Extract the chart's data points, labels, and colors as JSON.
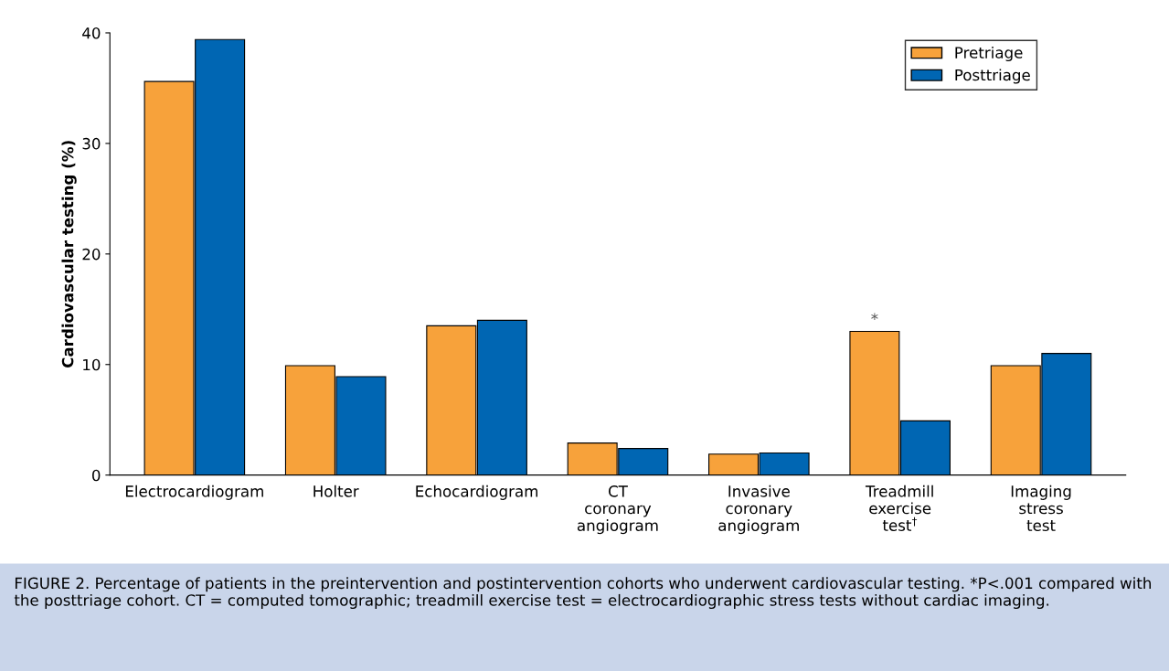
{
  "chart_data": {
    "type": "bar",
    "ylabel": "Cardiovascular testing (%)",
    "categories": [
      "Electrocardiogram",
      "Holter",
      "Echocardiogram",
      "CT\ncoronary\nangiogram",
      "Invasive\ncoronary\nangiogram",
      "Treadmill\nexercise\ntest$^{†}$",
      "Imaging\nstress\ntest"
    ],
    "series": [
      {
        "name": "Pretriage",
        "color": "#f7a23b",
        "values": [
          35.6,
          9.9,
          13.5,
          2.9,
          1.9,
          13.0,
          9.9
        ]
      },
      {
        "name": "Posttriage",
        "color": "#0066b3",
        "values": [
          39.4,
          8.9,
          14.0,
          2.4,
          2.0,
          4.9,
          11.0
        ]
      }
    ],
    "ylim": [
      0,
      40
    ],
    "yticks": [
      0,
      10,
      20,
      30,
      40
    ],
    "grid": false,
    "legend": "top right",
    "annotations": [
      {
        "text": "*",
        "x": "Treadmill\nexercise\ntest$^{†}$",
        "y": 13.0
      },
      "FIGURE 2. Percentage of patients in the preintervention and postintervention cohorts who underwent cardiovascular testing. *P<.001 compared with the posttriage cohort. CT = computed tomographic; treadmill exercise test = electrocardiographic stress tests without cardiac imaging."
    ]
  }
}
